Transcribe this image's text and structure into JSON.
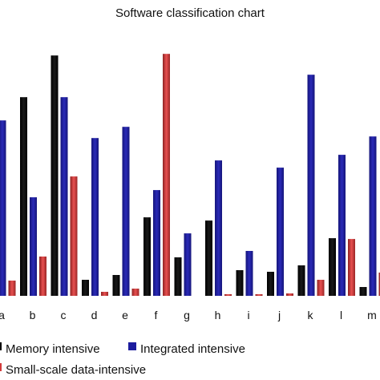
{
  "chart_data": {
    "type": "bar",
    "title": "Software classification chart",
    "categories": [
      "a",
      "b",
      "c",
      "d",
      "e",
      "f",
      "g",
      "h",
      "i",
      "j",
      "k",
      "l",
      "m"
    ],
    "series": [
      {
        "name": "Memory intensive",
        "color": "#000000",
        "values": [
          null,
          248,
          300,
          20,
          26,
          98,
          48,
          94,
          32,
          30,
          38,
          72,
          11
        ]
      },
      {
        "name": "Integrated intensive",
        "color": "#1c1c9e",
        "values": [
          219,
          123,
          248,
          197,
          211,
          132,
          78,
          169,
          56,
          160,
          276,
          176,
          199
        ]
      },
      {
        "name": "Small-scale data-intensive",
        "color": "#d33a3a",
        "values": [
          19,
          49,
          149,
          5,
          9,
          302,
          null,
          2,
          2,
          3,
          20,
          71,
          29
        ]
      }
    ],
    "ylim": [
      0,
      310
    ],
    "legend_position": "bottom"
  }
}
